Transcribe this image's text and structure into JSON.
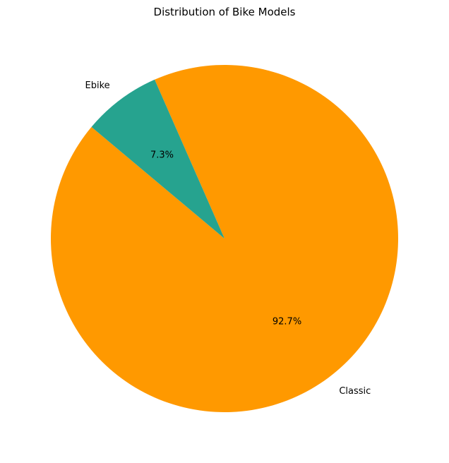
{
  "chart_data": {
    "type": "pie",
    "title": "Distribution of Bike Models",
    "categories": [
      "Classic",
      "Ebike"
    ],
    "values": [
      92.7,
      7.3
    ],
    "percent_labels": [
      "92.7%",
      "7.3%"
    ],
    "colors": [
      "#ff9900",
      "#26a38f"
    ],
    "start_angle_deg": 140,
    "legend": "none"
  }
}
